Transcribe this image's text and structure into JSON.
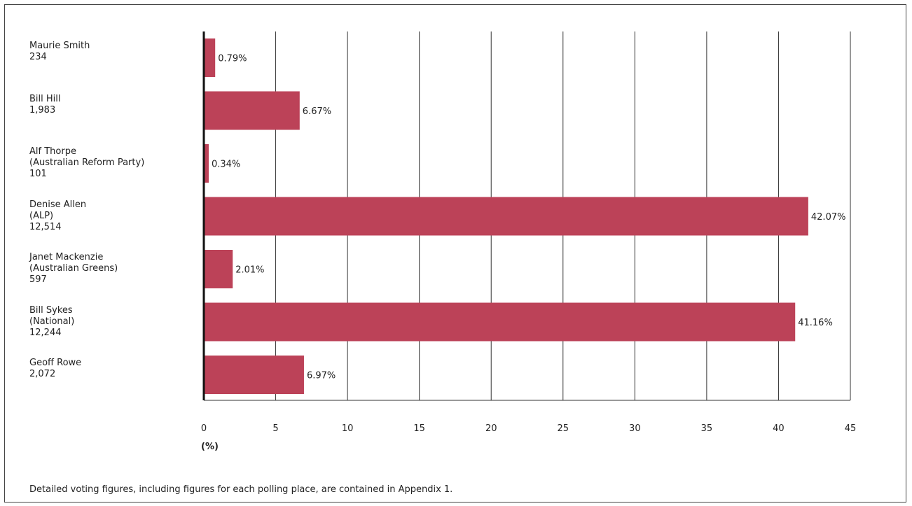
{
  "chart_data": {
    "type": "bar",
    "orientation": "horizontal",
    "categories": [
      {
        "lines": [
          "Maurie Smith"
        ],
        "votes": "234"
      },
      {
        "lines": [
          "Bill Hill"
        ],
        "votes": "1,983"
      },
      {
        "lines": [
          "Alf Thorpe",
          "(Australian Reform Party)"
        ],
        "votes": "101"
      },
      {
        "lines": [
          "Denise Allen",
          "(ALP)"
        ],
        "votes": "12,514"
      },
      {
        "lines": [
          "Janet Mackenzie",
          "(Australian Greens)"
        ],
        "votes": "597"
      },
      {
        "lines": [
          "Bill Sykes",
          "(National)"
        ],
        "votes": "12,244"
      },
      {
        "lines": [
          "Geoff Rowe"
        ],
        "votes": "2,072"
      }
    ],
    "values": [
      0.79,
      6.67,
      0.34,
      42.07,
      2.01,
      41.16,
      6.97
    ],
    "value_labels": [
      "0.79%",
      "6.67%",
      "0.34%",
      "42.07%",
      "2.01%",
      "41.16%",
      "6.97%"
    ],
    "xticks": [
      "0",
      "5",
      "10",
      "15",
      "20",
      "25",
      "30",
      "35",
      "40",
      "45"
    ],
    "xlim": [
      0,
      45
    ],
    "xlabel": "(%)",
    "grid": true,
    "bar_color": "#bc4258"
  },
  "footnote": "Detailed voting figures, including figures for each polling place, are contained in Appendix 1."
}
